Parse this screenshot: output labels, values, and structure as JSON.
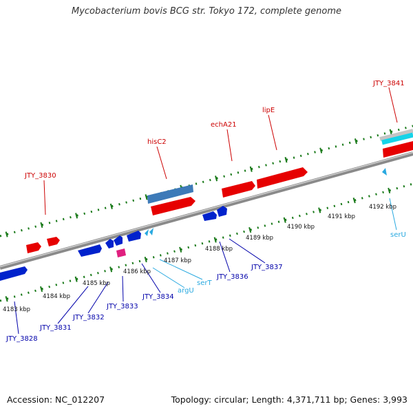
{
  "title": "Mycobacterium bovis BCG str. Tokyo 172, complete genome",
  "footer": {
    "accession": "Accession: NC_012207",
    "stats": "Topology: circular; Length: 4,371,711 bp; Genes: 3,993"
  },
  "colors": {
    "backbone": "#7f7f7f",
    "forward_gene": "#e60000",
    "reverse_gene": "#0022cc",
    "rrna": "#3d7ab8",
    "trna": "#29a9e0",
    "misc_feature": "#e0207f",
    "forward_label": "#cc0000",
    "reverse_label": "#0000aa",
    "trna_label": "#29a9e0",
    "ticks": "#1a7a1a"
  },
  "scale_labels": [
    "4183 kbp",
    "4184 kbp",
    "4185 kbp",
    "4186 kbp",
    "4187 kbp",
    "4188 kbp",
    "4189 kbp",
    "4190 kbp",
    "4191 kbp",
    "4192 kbp"
  ],
  "forward_labels": [
    "JTY_3830",
    "hisC2",
    "echA21",
    "lipE",
    "JTY_3841"
  ],
  "reverse_labels": [
    "JTY_3828",
    "JTY_3831",
    "JTY_3832",
    "JTY_3833",
    "JTY_3834",
    "JTY_3836",
    "JTY_3837"
  ],
  "trna_labels": [
    "argU",
    "serT",
    "serU"
  ]
}
